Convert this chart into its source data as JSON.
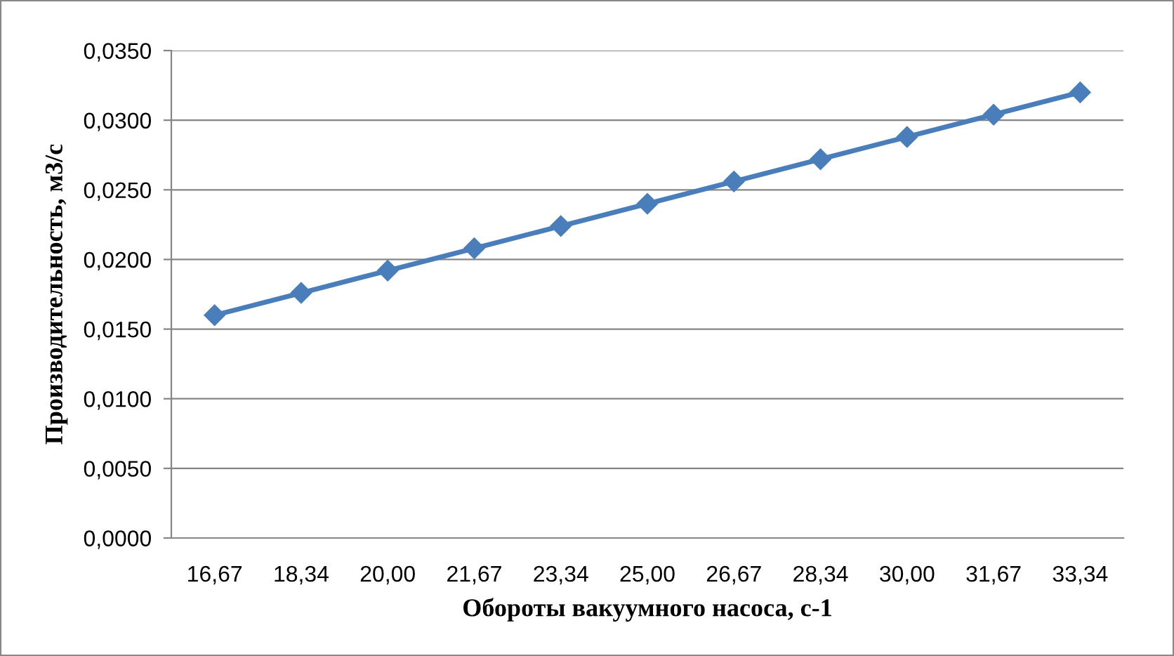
{
  "chart_data": {
    "type": "line",
    "xlabel": "Обороты вакуумного насоса, с-1",
    "ylabel": "Производительность, м3/с",
    "categories": [
      "16,67",
      "18,34",
      "20,00",
      "21,67",
      "23,34",
      "25,00",
      "26,67",
      "28,34",
      "30,00",
      "31,67",
      "33,34"
    ],
    "series": [
      {
        "color": "#4a7ebb",
        "values": [
          0.016,
          0.0176,
          0.0192,
          0.0208,
          0.0224,
          0.024,
          0.0256,
          0.0272,
          0.0288,
          0.0304,
          0.032
        ]
      }
    ],
    "ylim": [
      0,
      0.035
    ],
    "yticks": [
      {
        "value": 0,
        "label": "0,0000"
      },
      {
        "value": 0.005,
        "label": "0,0050"
      },
      {
        "value": 0.01,
        "label": "0,0100"
      },
      {
        "value": 0.015,
        "label": "0,0150"
      },
      {
        "value": 0.02,
        "label": "0,0200"
      },
      {
        "value": 0.025,
        "label": "0,0250"
      },
      {
        "value": 0.03,
        "label": "0,0300"
      },
      {
        "value": 0.035,
        "label": "0,0350"
      }
    ],
    "grid": "y",
    "legend": false,
    "marker": "diamond",
    "line_style": "solid"
  }
}
